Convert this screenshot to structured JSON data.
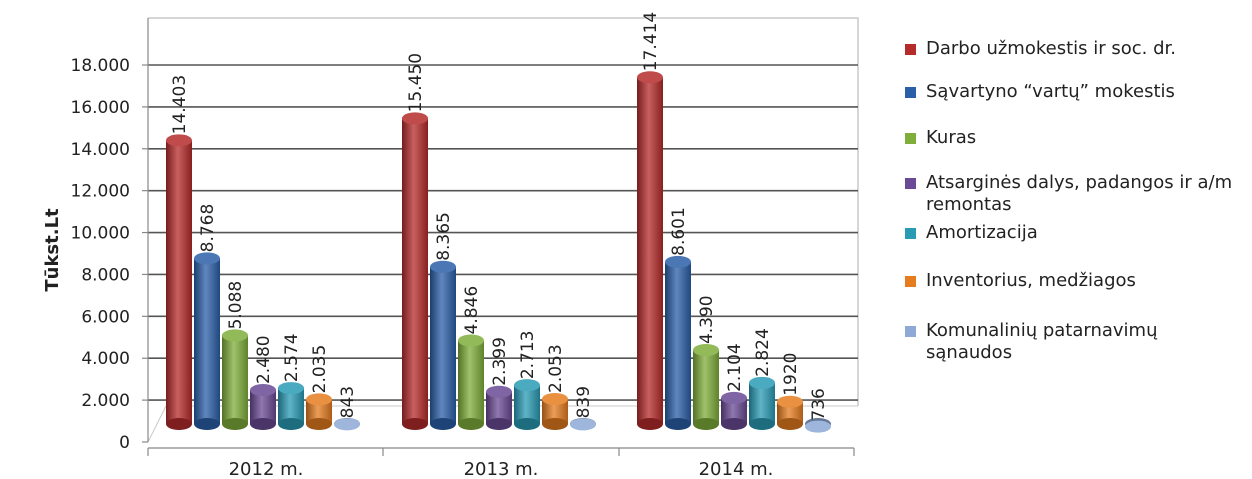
{
  "chart_data": {
    "type": "bar",
    "ylabel": "Tūkst.Lt",
    "ylim": [
      0,
      18000
    ],
    "yticks": [
      0,
      2000,
      4000,
      6000,
      8000,
      10000,
      12000,
      14000,
      16000,
      18000
    ],
    "ytick_labels": [
      "0",
      "2.000",
      "4.000",
      "6.000",
      "8.000",
      "10.000",
      "12.000",
      "14.000",
      "16.000",
      "18.000"
    ],
    "categories": [
      "2012 m.",
      "2013 m.",
      "2014 m."
    ],
    "grid": true,
    "legend_position": "right",
    "series": [
      {
        "name": "Darbo užmokestis ir soc. dr.",
        "color": "#b52b2b",
        "values": [
          14403,
          15450,
          17414
        ],
        "labels": [
          "14.403",
          "15.450",
          "17.414"
        ]
      },
      {
        "name": "Sąvartyno “vartų” mokestis",
        "color": "#2b5fa8",
        "values": [
          8768,
          8365,
          8601
        ],
        "labels": [
          "8.768",
          "8.365",
          "8.601"
        ]
      },
      {
        "name": "Kuras",
        "color": "#7fae3a",
        "values": [
          5088,
          4846,
          4390
        ],
        "labels": [
          "5.088",
          "4.846",
          "4.390"
        ]
      },
      {
        "name": "Atsarginės dalys, padangos ir a/m remontas",
        "color": "#6a4a94",
        "values": [
          2480,
          2399,
          2104
        ],
        "labels": [
          "2.480",
          "2.399",
          "2.104"
        ]
      },
      {
        "name": "Amortizacija",
        "color": "#2a9bb5",
        "values": [
          2574,
          2713,
          2824
        ],
        "labels": [
          "2.574",
          "2.713",
          "2.824"
        ]
      },
      {
        "name": "Inventorius, medžiagos",
        "color": "#e57c1f",
        "values": [
          2035,
          2053,
          1920
        ],
        "labels": [
          "2.035",
          "2.053",
          "1920"
        ]
      },
      {
        "name": "Komunalinių patarnavimų sąnaudos",
        "color": "#8ea9d6",
        "values": [
          843,
          839,
          736
        ],
        "labels": [
          "843",
          "839",
          "736"
        ]
      }
    ]
  }
}
